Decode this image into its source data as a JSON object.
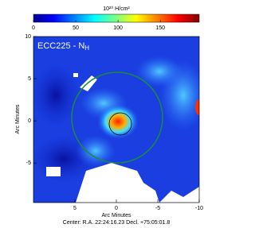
{
  "chart_data": {
    "type": "heatmap",
    "colorbar_label": "10²⁰ H/cm²",
    "clim": [
      0,
      196
    ],
    "cticks": [
      0,
      50,
      100,
      150
    ],
    "map_label": {
      "text": "ECC225 - N",
      "subscript": "H"
    },
    "xlabel": "Arc Minutes",
    "ylabel": "Arc Minutes",
    "xlim": [
      10,
      -10
    ],
    "xticks": [
      5,
      0,
      -5,
      -10
    ],
    "ylim": [
      -9.7,
      10
    ],
    "yticks": [
      10,
      5,
      0,
      -5
    ],
    "footer": "Center: R.A. 22:24:16.23  Decl. +75:05:01.8"
  }
}
